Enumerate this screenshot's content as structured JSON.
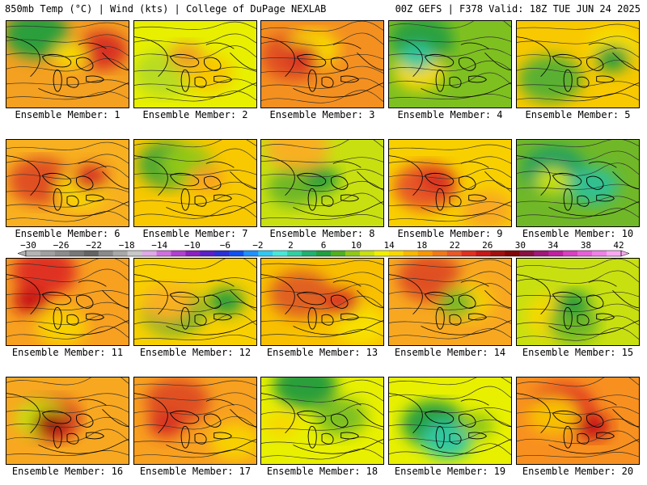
{
  "header": {
    "left": "850mb Temp (°C) | Wind (kts) | College of DuPage NEXLAB",
    "right": "00Z GEFS | F378 Valid: 18Z TUE JUN 24 2025"
  },
  "colorbar": {
    "labels": [
      "−30",
      "−26",
      "−22",
      "−18",
      "−14",
      "−10",
      "−6",
      "−2",
      "2",
      "6",
      "10",
      "14",
      "18",
      "22",
      "26",
      "30",
      "34",
      "38",
      "42"
    ],
    "colors": [
      "#b4b4b4",
      "#a0a0a0",
      "#8c8c8c",
      "#787878",
      "#646464",
      "#8a8a8a",
      "#a8a8a8",
      "#c8c8c8",
      "#e0a8e8",
      "#d070e0",
      "#b040d0",
      "#8a20c0",
      "#5a20c8",
      "#2a30d8",
      "#1050f0",
      "#1e90ff",
      "#30c8f0",
      "#48e8d8",
      "#30d0a0",
      "#20b070",
      "#20a040",
      "#50b020",
      "#90c818",
      "#c8e010",
      "#f0f000",
      "#f8d800",
      "#f8b800",
      "#f89800",
      "#f07818",
      "#e85828",
      "#e03020",
      "#c81818",
      "#a01010",
      "#800808",
      "#8a1040",
      "#a01878",
      "#c020a0",
      "#d840c0",
      "#e860d8",
      "#f080e8",
      "#f8a8f0"
    ]
  },
  "panels": [
    {
      "caption": "Ensemble Member: 1"
    },
    {
      "caption": "Ensemble Member: 2"
    },
    {
      "caption": "Ensemble Member: 3"
    },
    {
      "caption": "Ensemble Member: 4"
    },
    {
      "caption": "Ensemble Member: 5"
    },
    {
      "caption": "Ensemble Member: 6"
    },
    {
      "caption": "Ensemble Member: 7"
    },
    {
      "caption": "Ensemble Member: 8"
    },
    {
      "caption": "Ensemble Member: 9"
    },
    {
      "caption": "Ensemble Member: 10"
    },
    {
      "caption": "Ensemble Member: 11"
    },
    {
      "caption": "Ensemble Member: 12"
    },
    {
      "caption": "Ensemble Member: 13"
    },
    {
      "caption": "Ensemble Member: 14"
    },
    {
      "caption": "Ensemble Member: 15"
    },
    {
      "caption": "Ensemble Member: 16"
    },
    {
      "caption": "Ensemble Member: 17"
    },
    {
      "caption": "Ensemble Member: 18"
    },
    {
      "caption": "Ensemble Member: 19"
    },
    {
      "caption": "Ensemble Member: 20"
    }
  ]
}
